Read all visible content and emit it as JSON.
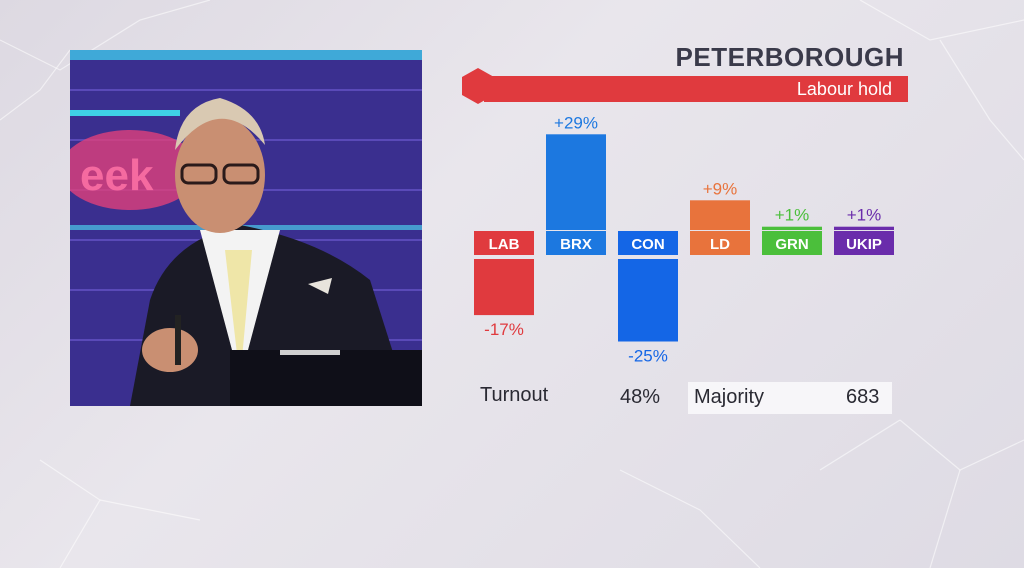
{
  "constituency": "PETERBOROUGH",
  "result": "Labour hold",
  "colors": {
    "winner": "#e03a3e",
    "LAB": "#e03a3e",
    "BRX": "#1c78e0",
    "CON": "#1466e6",
    "LD": "#e8733c",
    "GRN": "#4bbf3b",
    "UKIP": "#6a2cab"
  },
  "chart_data": {
    "type": "bar",
    "categories": [
      "LAB",
      "BRX",
      "CON",
      "LD",
      "GRN",
      "UKIP"
    ],
    "values": [
      -17,
      29,
      -25,
      9,
      1,
      1
    ],
    "value_labels": [
      "-17%",
      "+29%",
      "-25%",
      "+9%",
      "+1%",
      "+1%"
    ],
    "title": "PETERBOROUGH",
    "xlabel": "",
    "ylabel": "",
    "ylim": [
      -25,
      29
    ],
    "grid": false,
    "legend": "none"
  },
  "stats": {
    "turnout_label": "Turnout",
    "turnout_value": "48%",
    "majority_label": "Majority",
    "majority_value": "683"
  },
  "video": {
    "background_text": "eek"
  }
}
